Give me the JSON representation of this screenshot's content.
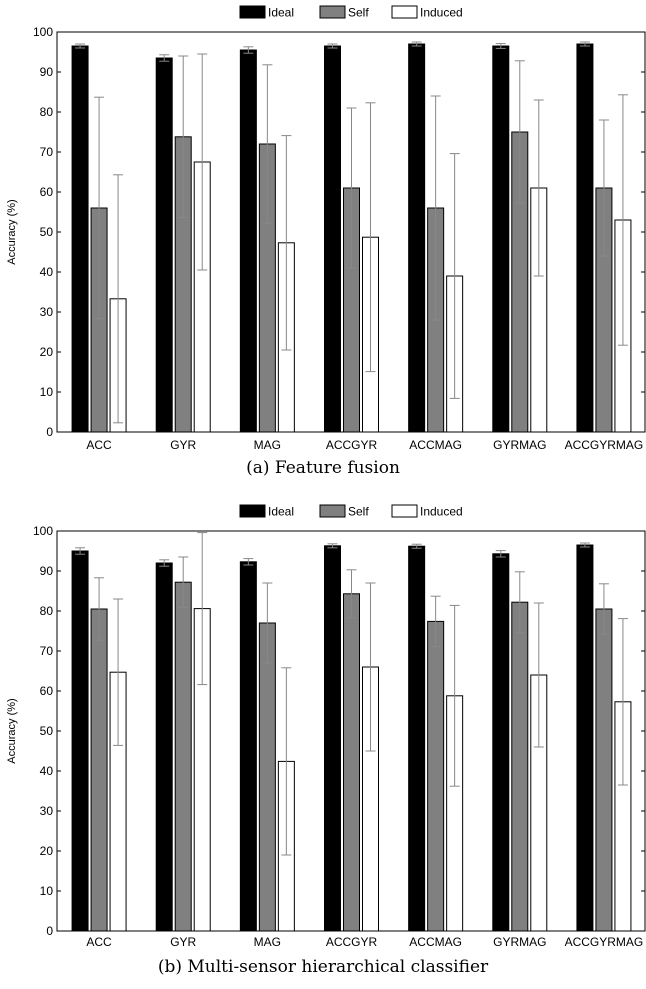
{
  "chart_data": [
    {
      "type": "bar",
      "caption": "(a) Feature fusion",
      "ylabel": "Accuracy (%)",
      "ylim": [
        0,
        100
      ],
      "yticks": [
        0,
        10,
        20,
        30,
        40,
        50,
        60,
        70,
        80,
        90,
        100
      ],
      "categories": [
        "ACC",
        "GYR",
        "MAG",
        "ACCGYR",
        "ACCMAG",
        "GYRMAG",
        "ACCGYRMAG"
      ],
      "legend": "top",
      "series": [
        {
          "name": "Ideal",
          "color": "#000000",
          "values": [
            96.5,
            93.5,
            95.5,
            96.5,
            97.0,
            96.5,
            97.0
          ],
          "err": [
            0.5,
            0.8,
            0.8,
            0.5,
            0.5,
            0.6,
            0.5
          ]
        },
        {
          "name": "Self",
          "color": "#808080",
          "values": [
            56.0,
            73.8,
            72.0,
            61.0,
            56.0,
            75.0,
            61.0
          ],
          "err": [
            27.7,
            20.2,
            19.8,
            20.0,
            28.0,
            17.8,
            17.0
          ]
        },
        {
          "name": "Induced",
          "color": "#ffffff",
          "values": [
            33.3,
            67.5,
            47.3,
            48.7,
            39.0,
            61.0,
            53.0
          ],
          "err": [
            31.0,
            27.0,
            26.8,
            33.6,
            30.6,
            22.0,
            31.3
          ]
        }
      ]
    },
    {
      "type": "bar",
      "caption": "(b) Multi-sensor hierarchical classifier",
      "ylabel": "Accuracy (%)",
      "ylim": [
        0,
        100
      ],
      "yticks": [
        0,
        10,
        20,
        30,
        40,
        50,
        60,
        70,
        80,
        90,
        100
      ],
      "categories": [
        "ACC",
        "GYR",
        "MAG",
        "ACCGYR",
        "ACCMAG",
        "GYRMAG",
        "ACCGYRMAG"
      ],
      "legend": "top",
      "series": [
        {
          "name": "Ideal",
          "color": "#000000",
          "values": [
            95.0,
            92.0,
            92.3,
            96.3,
            96.2,
            94.3,
            96.5
          ],
          "err": [
            0.8,
            0.8,
            0.8,
            0.5,
            0.5,
            0.8,
            0.5
          ]
        },
        {
          "name": "Self",
          "color": "#808080",
          "values": [
            80.5,
            87.2,
            77.0,
            84.3,
            77.4,
            82.2,
            80.5
          ],
          "err": [
            7.8,
            6.3,
            10.0,
            6.0,
            6.3,
            7.6,
            6.3
          ]
        },
        {
          "name": "Induced",
          "color": "#ffffff",
          "values": [
            64.7,
            80.6,
            42.4,
            66.0,
            58.8,
            64.0,
            57.3
          ],
          "err": [
            18.3,
            19.0,
            23.4,
            21.0,
            22.6,
            18.0,
            20.8
          ]
        }
      ]
    }
  ]
}
